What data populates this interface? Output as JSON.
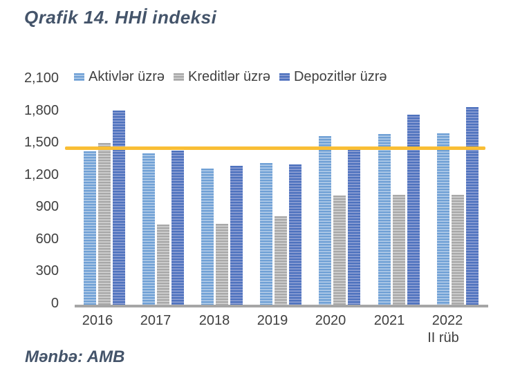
{
  "page": {
    "title": "Qrafik 14. HHİ indeksi",
    "source": "Mənbə: AMB"
  },
  "chart_data": {
    "type": "bar",
    "title": "Qrafik 14. HHİ indeksi",
    "categories": [
      "2016",
      "2017",
      "2018",
      "2019",
      "2020",
      "2021",
      "2022"
    ],
    "category_sub_label": {
      "category_index": 6,
      "label": "II rüb"
    },
    "series": [
      {
        "name": "Aktivlər üzrə",
        "values": [
          1420,
          1400,
          1260,
          1310,
          1560,
          1580,
          1590
        ],
        "color": "#6FA0D5",
        "stripe_color": "#B9D0EA"
      },
      {
        "name": "Kreditlər üzrə",
        "values": [
          1500,
          740,
          750,
          820,
          1010,
          1020,
          1020
        ],
        "color": "#A8A8A8",
        "stripe_color": "#D6D6D6"
      },
      {
        "name": "Depozitlər üzrə",
        "values": [
          1800,
          1430,
          1290,
          1300,
          1440,
          1760,
          1830
        ],
        "color": "#4E72BE",
        "stripe_color": "#94A4D6"
      }
    ],
    "ylabel": "",
    "xlabel": "",
    "ylim": [
      0,
      2100
    ],
    "ytick_step": 300,
    "ytick_labels": [
      "0",
      "300",
      "600",
      "900",
      "1,200",
      "1,500",
      "1,800",
      "2,100"
    ],
    "threshold_line": {
      "value": 1450,
      "color": "#F9BE35"
    },
    "grid": false,
    "legend_position": "top-inside",
    "axis_text_color": "#404040",
    "axis_line_color": "#A6A6A6",
    "bar_pattern": "horizontal-stripes"
  }
}
